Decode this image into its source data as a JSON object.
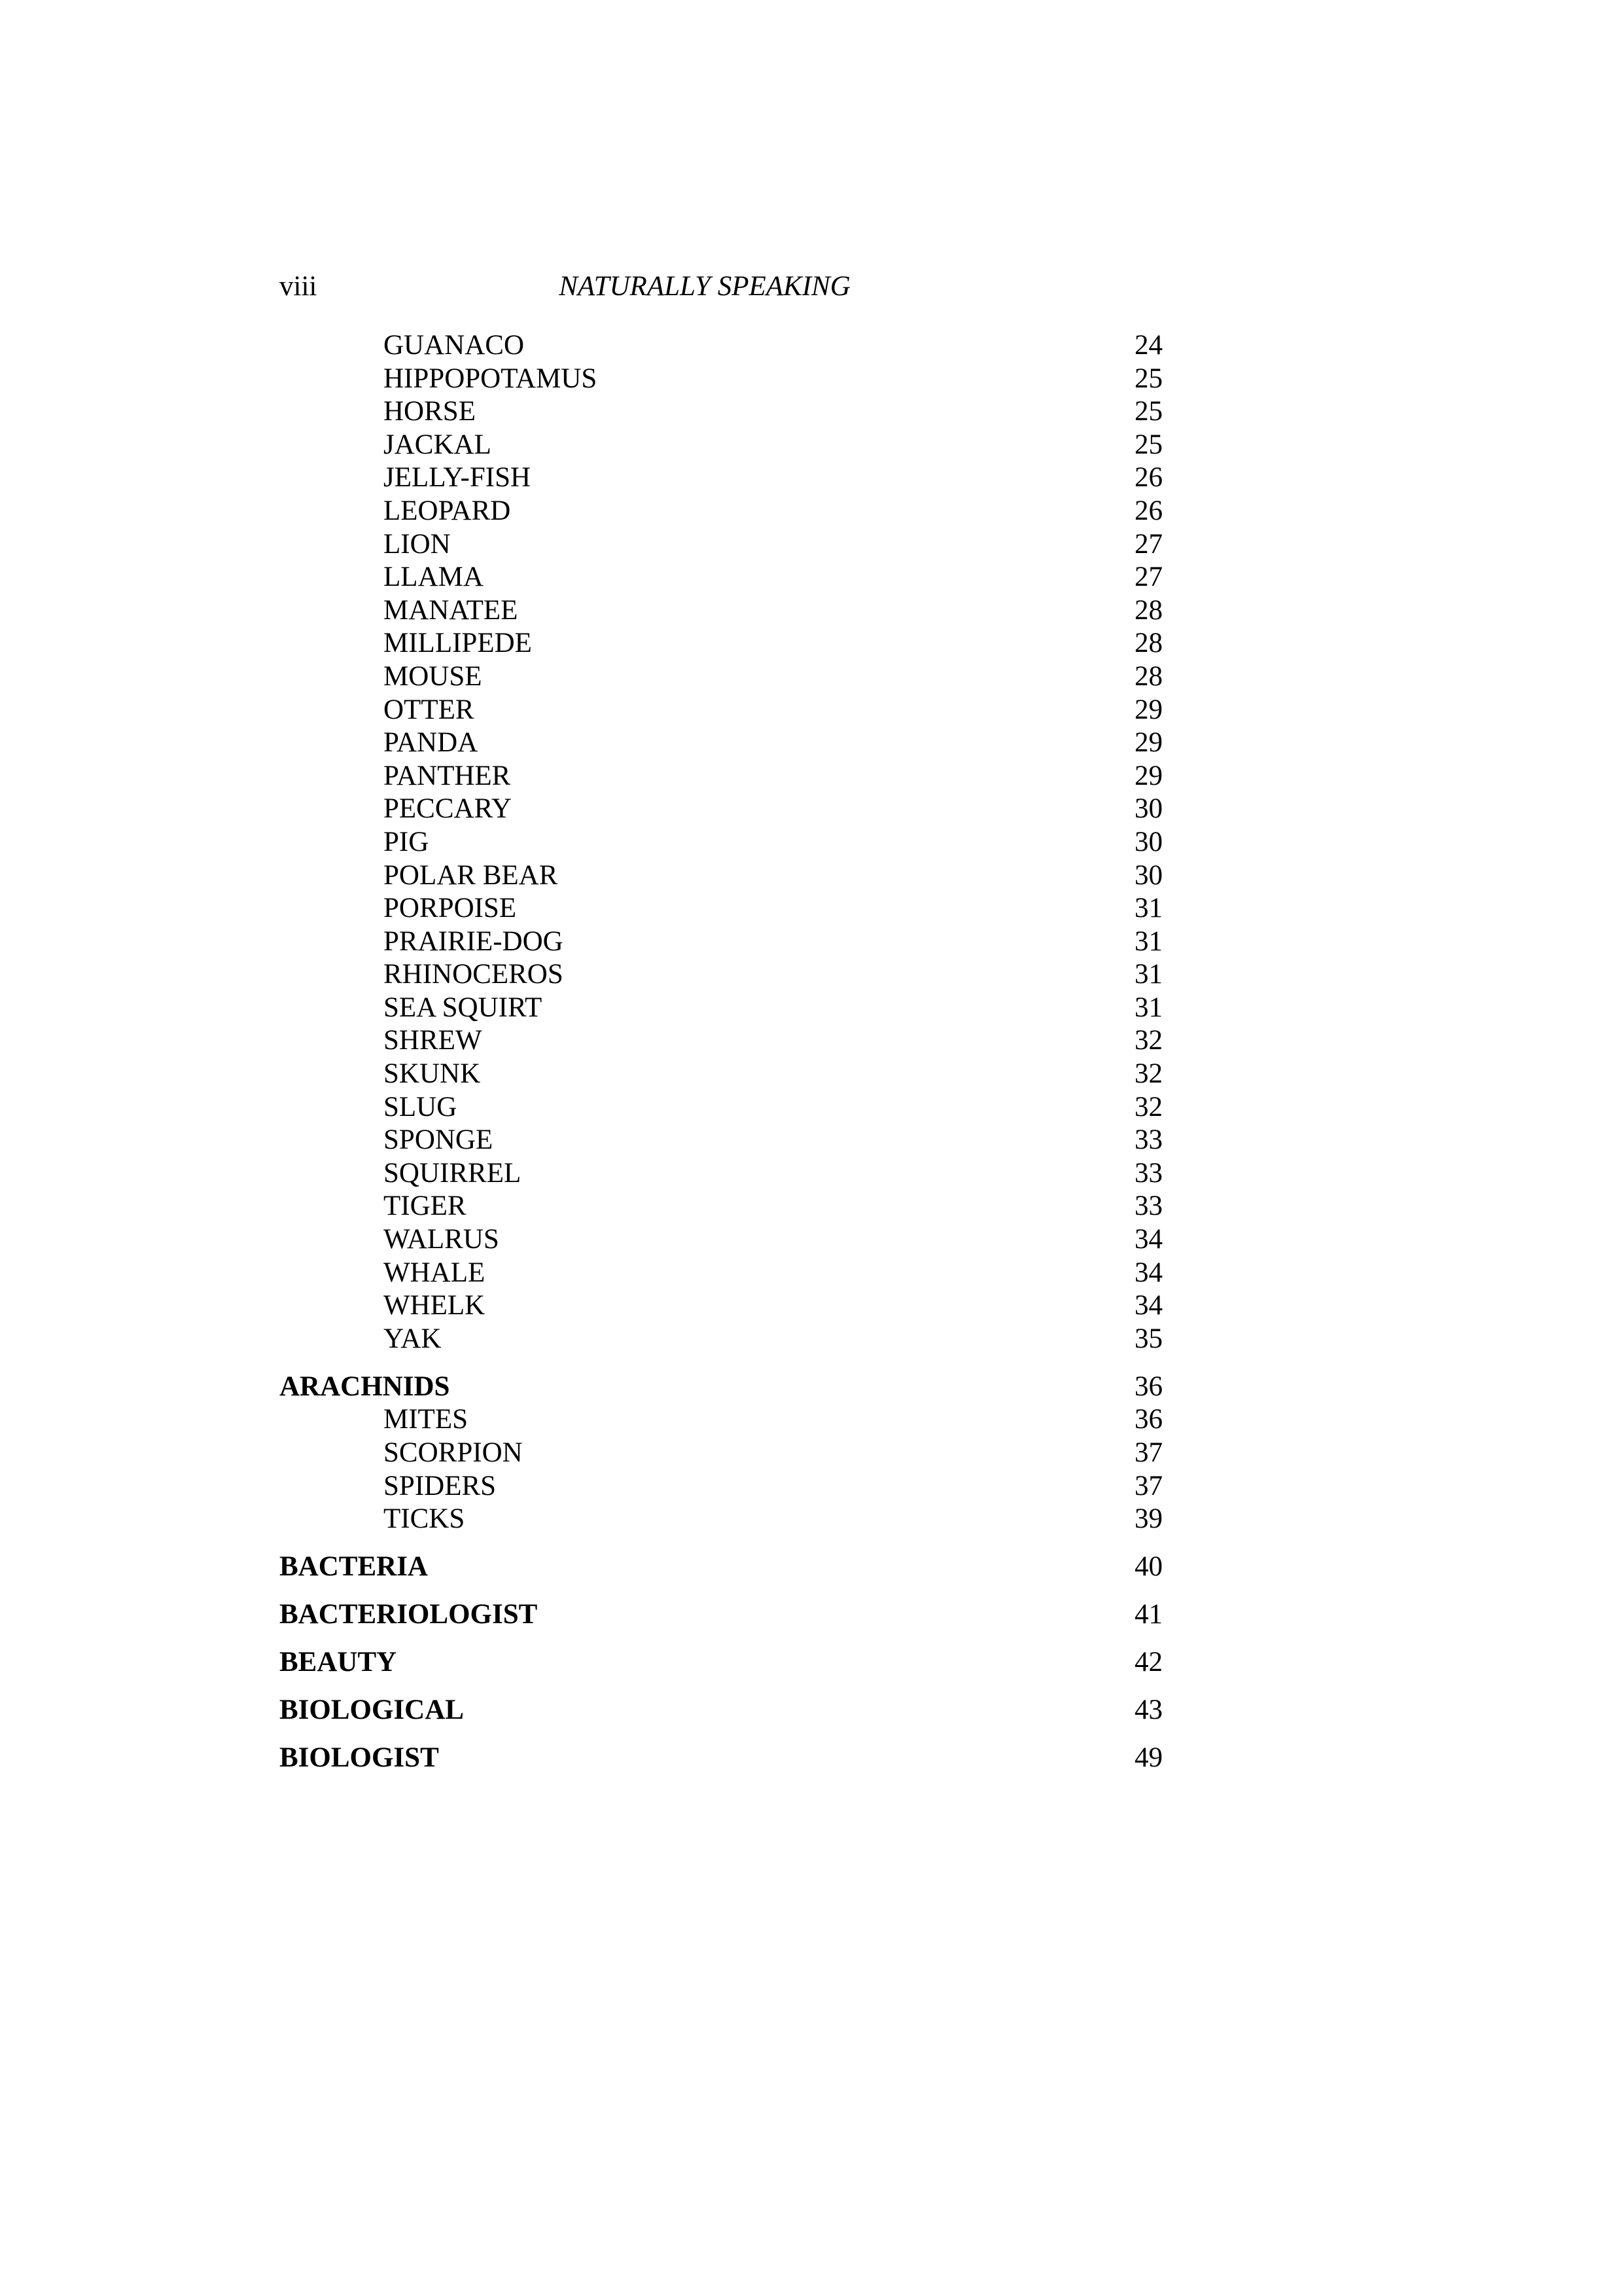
{
  "header": {
    "folio": "viii",
    "running_title": "NATURALLY SPEAKING"
  },
  "entries": [
    {
      "label": "GUANACO",
      "page": "24",
      "level": 2
    },
    {
      "label": "HIPPOPOTAMUS",
      "page": "25",
      "level": 2
    },
    {
      "label": "HORSE",
      "page": "25",
      "level": 2
    },
    {
      "label": "JACKAL",
      "page": "25",
      "level": 2
    },
    {
      "label": "JELLY-FISH",
      "page": "26",
      "level": 2
    },
    {
      "label": "LEOPARD",
      "page": "26",
      "level": 2
    },
    {
      "label": "LION",
      "page": "27",
      "level": 2
    },
    {
      "label": "LLAMA",
      "page": "27",
      "level": 2
    },
    {
      "label": "MANATEE",
      "page": "28",
      "level": 2
    },
    {
      "label": "MILLIPEDE",
      "page": "28",
      "level": 2
    },
    {
      "label": "MOUSE",
      "page": "28",
      "level": 2
    },
    {
      "label": "OTTER",
      "page": "29",
      "level": 2
    },
    {
      "label": "PANDA",
      "page": "29",
      "level": 2
    },
    {
      "label": "PANTHER",
      "page": "29",
      "level": 2
    },
    {
      "label": "PECCARY",
      "page": "30",
      "level": 2
    },
    {
      "label": "PIG",
      "page": "30",
      "level": 2
    },
    {
      "label": "POLAR BEAR",
      "page": "30",
      "level": 2
    },
    {
      "label": "PORPOISE",
      "page": "31",
      "level": 2
    },
    {
      "label": "PRAIRIE-DOG",
      "page": "31",
      "level": 2
    },
    {
      "label": "RHINOCEROS",
      "page": "31",
      "level": 2
    },
    {
      "label": "SEA SQUIRT",
      "page": "31",
      "level": 2
    },
    {
      "label": "SHREW",
      "page": "32",
      "level": 2
    },
    {
      "label": "SKUNK",
      "page": "32",
      "level": 2
    },
    {
      "label": "SLUG",
      "page": "32",
      "level": 2
    },
    {
      "label": "SPONGE",
      "page": "33",
      "level": 2
    },
    {
      "label": "SQUIRREL",
      "page": "33",
      "level": 2
    },
    {
      "label": "TIGER",
      "page": "33",
      "level": 2
    },
    {
      "label": "WALRUS",
      "page": "34",
      "level": 2
    },
    {
      "label": "WHALE",
      "page": "34",
      "level": 2
    },
    {
      "label": "WHELK",
      "page": "34",
      "level": 2
    },
    {
      "label": "YAK",
      "page": "35",
      "level": 2
    },
    {
      "label": "ARACHNIDS",
      "page": "36",
      "level": 1
    },
    {
      "label": "MITES",
      "page": "36",
      "level": 2
    },
    {
      "label": "SCORPION",
      "page": "37",
      "level": 2
    },
    {
      "label": "SPIDERS",
      "page": "37",
      "level": 2
    },
    {
      "label": "TICKS",
      "page": "39",
      "level": 2
    },
    {
      "label": "BACTERIA",
      "page": "40",
      "level": 1
    },
    {
      "label": "BACTERIOLOGIST",
      "page": "41",
      "level": 1
    },
    {
      "label": "BEAUTY",
      "page": "42",
      "level": 1
    },
    {
      "label": "BIOLOGICAL",
      "page": "43",
      "level": 1
    },
    {
      "label": "BIOLOGIST",
      "page": "49",
      "level": 1
    }
  ]
}
